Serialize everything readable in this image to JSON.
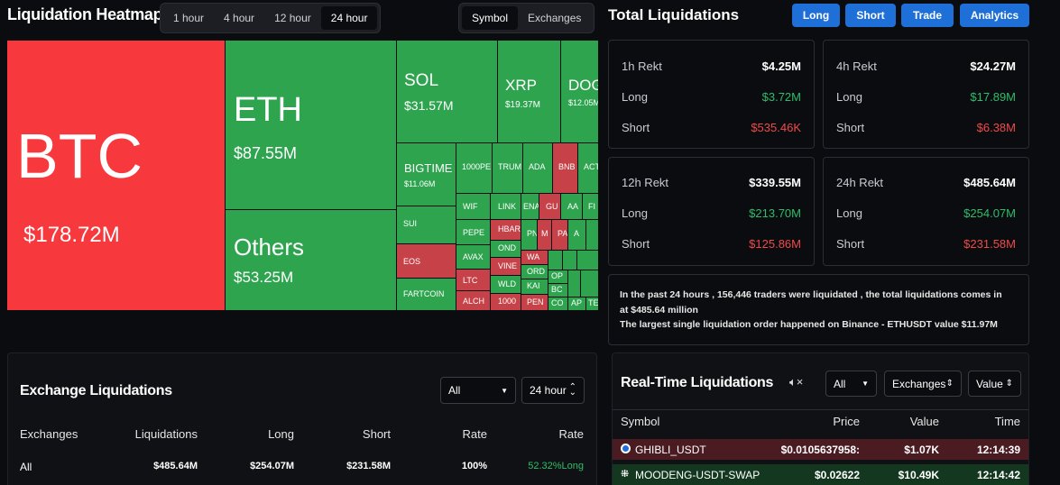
{
  "header": {
    "title": "Liquidation Heatmap",
    "time_tabs": [
      "1 hour",
      "4 hour",
      "12 hour",
      "24 hour"
    ],
    "active_time_tab": "24 hour",
    "view_tabs": [
      "Symbol",
      "Exchanges"
    ],
    "active_view_tab": "Symbol"
  },
  "heatmap": {
    "btc": {
      "label": "BTC",
      "value": "$178.72M"
    },
    "eth": {
      "label": "ETH",
      "value": "$87.55M"
    },
    "others": {
      "label": "Others",
      "value": "$53.25M"
    },
    "sol": {
      "label": "SOL",
      "value": "$31.57M"
    },
    "xrp": {
      "label": "XRP",
      "value": "$19.37M"
    },
    "doge": {
      "label": "DOG",
      "value": "$12.05M"
    },
    "bigtime": {
      "label": "BIGTIME",
      "value": "$11.06M"
    },
    "small": {
      "t1000pepe": "1000PE",
      "trump": "TRUM",
      "ada": "ADA",
      "bnb": "BNB",
      "act": "ACT",
      "sui": "SUI",
      "wif": "WIF",
      "link": "LINK",
      "ena": "ENA",
      "gu": "GU",
      "aave": "AA",
      "fi": "FI",
      "eos": "EOS",
      "pepe": "PEPE",
      "hbar": "HBAR",
      "pn": "PN",
      "m": "M",
      "pa": "PA",
      "a2": "A",
      "avax": "AVAX",
      "ond": "OND",
      "wa": "WA",
      "ltc": "LTC",
      "vine": "VINE",
      "ord": "ORD",
      "fartcoin": "FARTCOIN",
      "wld": "WLD",
      "kai": "KAI",
      "alch": "ALCH",
      "t1000": "1000",
      "pen": "PEN",
      "op": "OP",
      "bc": "BC",
      "co": "CO",
      "ap": "AP",
      "te": "TE"
    }
  },
  "total": {
    "title": "Total Liquidations",
    "buttons": [
      "Long",
      "Short",
      "Trade",
      "Analytics"
    ],
    "cards": [
      {
        "title": "1h Rekt",
        "total": "$4.25M",
        "long_label": "Long",
        "long": "$3.72M",
        "short_label": "Short",
        "short": "$535.46K"
      },
      {
        "title": "4h Rekt",
        "total": "$24.27M",
        "long_label": "Long",
        "long": "$17.89M",
        "short_label": "Short",
        "short": "$6.38M"
      },
      {
        "title": "12h Rekt",
        "total": "$339.55M",
        "long_label": "Long",
        "long": "$213.70M",
        "short_label": "Short",
        "short": "$125.86M"
      },
      {
        "title": "24h Rekt",
        "total": "$485.64M",
        "long_label": "Long",
        "long": "$254.07M",
        "short_label": "Short",
        "short": "$231.58M"
      }
    ],
    "summary_line1": "In the past 24 hours , 156,446 traders were liquidated , the total liquidations comes in",
    "summary_line2": "at $485.64 million",
    "summary_line3": "The largest single liquidation order happened on Binance - ETHUSDT value $11.97M"
  },
  "exchange": {
    "title": "Exchange Liquidations",
    "filter_all": "All",
    "filter_time": "24 hour",
    "columns": [
      "Exchanges",
      "Liquidations",
      "Long",
      "Short",
      "Rate",
      "Rate"
    ],
    "rows": [
      {
        "exchange": "All",
        "liquidations": "$485.64M",
        "long": "$254.07M",
        "short": "$231.58M",
        "rate": "100%",
        "rate2": "52.32%Long"
      }
    ]
  },
  "realtime": {
    "title": "Real-Time Liquidations",
    "filter_all": "All",
    "filter_exchanges": "Exchanges",
    "filter_value": "Value",
    "columns": [
      "Symbol",
      "Price",
      "Value",
      "Time"
    ],
    "rows": [
      {
        "symbol": "GHIBLI_USDT",
        "price": "$0.0105637958:",
        "value": "$1.07K",
        "time": "12:14:39",
        "icon": "gate-icon"
      },
      {
        "symbol": "MOODENG-USDT-SWAP",
        "price": "$0.02622",
        "value": "$10.49K",
        "time": "12:14:42",
        "icon": "okx-icon"
      }
    ]
  },
  "colors": {
    "green": "#2ea44f",
    "red": "#c64148",
    "bright_red": "#f7383d",
    "blue": "#1f6fd8"
  }
}
